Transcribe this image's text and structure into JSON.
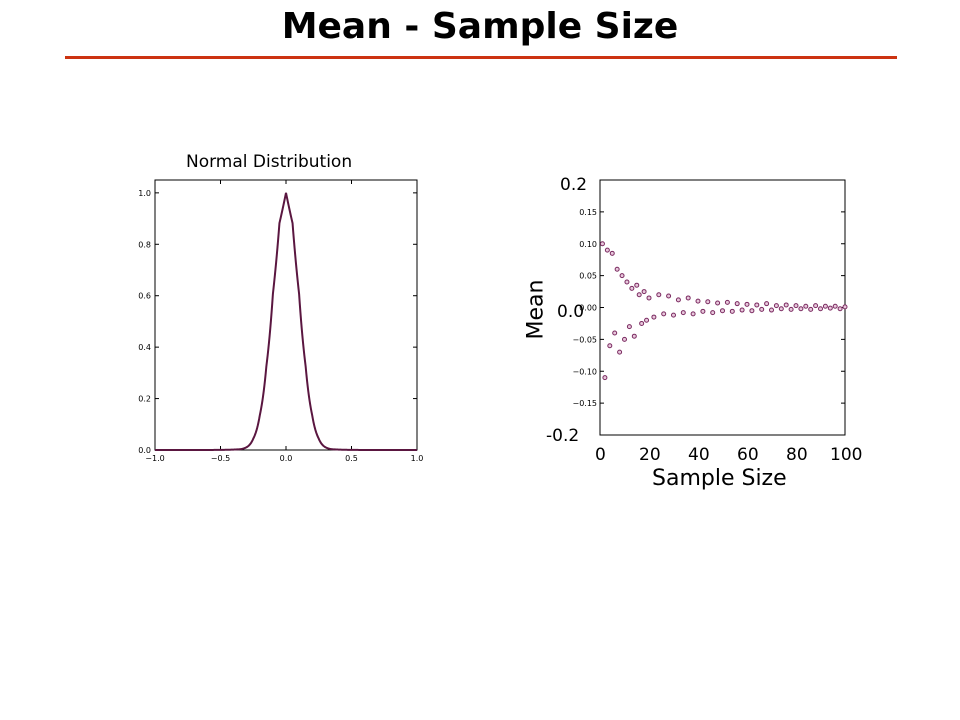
{
  "slide": {
    "title": "Mean - Sample Size"
  },
  "colors": {
    "title_rule": "#cc3311",
    "curve": "#5a1640",
    "points": "#7a2a60"
  },
  "chart_data": [
    {
      "type": "line",
      "title": "Normal Distribution",
      "xlabel": "",
      "ylabel": "",
      "xlim": [
        -1.0,
        1.0
      ],
      "ylim": [
        0.0,
        1.05
      ],
      "xticks": [
        "−1.0",
        "−0.5",
        "0.0",
        "0.5",
        "1.0"
      ],
      "yticks": [
        "0.0",
        "0.2",
        "0.4",
        "0.6",
        "0.8",
        "1.0"
      ],
      "series": [
        {
          "x": [
            -1.0,
            -0.35,
            -0.3,
            -0.25,
            -0.2,
            -0.15,
            -0.1,
            -0.05,
            0.0,
            0.05,
            0.1,
            0.15,
            0.2,
            0.25,
            0.3,
            0.35,
            1.0
          ],
          "values": [
            0.0,
            0.003,
            0.011,
            0.044,
            0.135,
            0.325,
            0.607,
            0.882,
            1.0,
            0.882,
            0.607,
            0.325,
            0.135,
            0.044,
            0.011,
            0.003,
            0.0
          ]
        }
      ],
      "grid": false
    },
    {
      "type": "scatter",
      "xlabel": "Sample Size",
      "ylabel": "Mean",
      "xlim": [
        0,
        100
      ],
      "ylim": [
        -0.2,
        0.2
      ],
      "xticks": [
        "0",
        "20",
        "40",
        "60",
        "80",
        "100"
      ],
      "yticks_large": [
        "0.2",
        "0.0",
        "-0.2"
      ],
      "yticks_small": [
        "0.15",
        "0.10",
        "0.05",
        "0.00",
        "−0.05",
        "−0.10",
        "−0.15"
      ],
      "series": [
        {
          "x": [
            1,
            2,
            3,
            4,
            5,
            6,
            7,
            8,
            9,
            10,
            11,
            12,
            13,
            14,
            15,
            16,
            17,
            18,
            19,
            20,
            22,
            24,
            26,
            28,
            30,
            32,
            34,
            36,
            38,
            40,
            42,
            44,
            46,
            48,
            50,
            52,
            54,
            56,
            58,
            60,
            62,
            64,
            66,
            68,
            70,
            72,
            74,
            76,
            78,
            80,
            82,
            84,
            86,
            88,
            90,
            92,
            94,
            96,
            98,
            100
          ],
          "values": [
            0.1,
            -0.11,
            0.09,
            -0.06,
            0.085,
            -0.04,
            0.06,
            -0.07,
            0.05,
            -0.05,
            0.04,
            -0.03,
            0.03,
            -0.045,
            0.035,
            0.02,
            -0.025,
            0.025,
            -0.02,
            0.015,
            -0.015,
            0.02,
            -0.01,
            0.018,
            -0.012,
            0.012,
            -0.008,
            0.015,
            -0.01,
            0.01,
            -0.006,
            0.009,
            -0.008,
            0.007,
            -0.005,
            0.008,
            -0.006,
            0.006,
            -0.004,
            0.005,
            -0.005,
            0.004,
            -0.003,
            0.006,
            -0.004,
            0.003,
            -0.002,
            0.004,
            -0.003,
            0.003,
            -0.002,
            0.002,
            -0.003,
            0.003,
            -0.002,
            0.002,
            -0.001,
            0.002,
            -0.002,
            0.001
          ]
        }
      ],
      "grid": false
    }
  ]
}
